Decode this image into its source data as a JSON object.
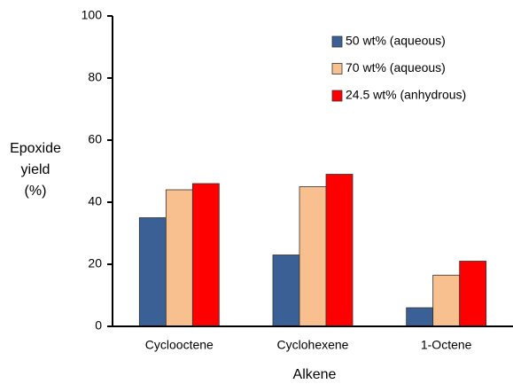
{
  "chart_data": {
    "type": "bar",
    "x_label": "Alkene",
    "y_label": "Epoxide yield (%)",
    "categories": [
      "Cyclooctene",
      "Cyclohexene",
      "1-Octene"
    ],
    "series": [
      {
        "name": "50 wt% (aqueous)",
        "color": "#3b6095",
        "values": [
          35,
          23,
          6
        ]
      },
      {
        "name": "70 wt% (aqueous)",
        "color": "#f9c08f",
        "values": [
          44,
          45,
          16.5
        ]
      },
      {
        "name": "24.5 wt% (anhydrous)",
        "color": "#ff0000",
        "values": [
          46,
          49,
          21
        ]
      }
    ],
    "ylim": [
      0,
      100
    ],
    "yticks": [
      0,
      20,
      40,
      60,
      80,
      100
    ],
    "legend": "upper right",
    "grid": false
  }
}
